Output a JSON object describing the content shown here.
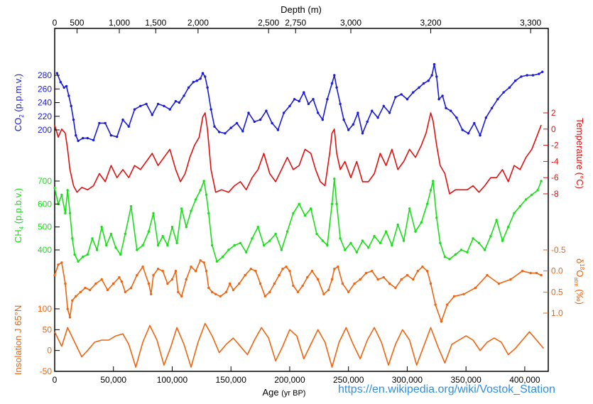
{
  "chart_data": {
    "type": "line",
    "source": "https://en.wikipedia.org/wiki/Vostok_Station",
    "x_bottom": {
      "label": "Age",
      "label_unit": "(yr BP)",
      "range": [
        0,
        420000
      ],
      "ticks": [
        "0",
        "50,000",
        "100,000",
        "150,000",
        "200,000",
        "250,000",
        "300,000",
        "350,000",
        "400,000"
      ],
      "tick_values": [
        0,
        50000,
        100000,
        150000,
        200000,
        250000,
        300000,
        350000,
        400000
      ]
    },
    "x_top": {
      "label": "Depth (m)",
      "ticks": [
        "0",
        "500",
        "1,000",
        "1,500",
        "2,000",
        "2,500",
        "2,750",
        "3,000",
        "3,200",
        "3,300"
      ],
      "tick_ages": [
        0,
        19000,
        55000,
        86000,
        122000,
        182000,
        205000,
        252000,
        320000,
        405000
      ]
    },
    "series": [
      {
        "name": "CO2",
        "axis_label": "CO",
        "axis_sub": "2",
        "axis_unit": "(p.p.m.v.)",
        "axis_side": "left",
        "color": "#1a1adb",
        "y_ticks": [
          "200",
          "220",
          "240",
          "260",
          "280"
        ],
        "y_tick_values": [
          200,
          220,
          240,
          260,
          280
        ],
        "x": [
          2000,
          5000,
          8000,
          10000,
          12000,
          14000,
          16000,
          18000,
          20000,
          24000,
          28000,
          33000,
          38000,
          43000,
          48000,
          53000,
          58000,
          63000,
          68000,
          73000,
          78000,
          83000,
          88000,
          93000,
          98000,
          103000,
          106000,
          110000,
          114000,
          118000,
          121000,
          124000,
          126000,
          128000,
          130000,
          133000,
          136000,
          140000,
          145000,
          150000,
          155000,
          160000,
          165000,
          170000,
          175000,
          180000,
          185000,
          190000,
          195000,
          200000,
          204000,
          208000,
          212000,
          216000,
          220000,
          224000,
          228000,
          232000,
          236000,
          238000,
          240000,
          243000,
          246000,
          250000,
          254000,
          258000,
          262000,
          266000,
          270000,
          275000,
          280000,
          285000,
          290000,
          295000,
          300000,
          305000,
          310000,
          314000,
          318000,
          321000,
          323000,
          325000,
          327000,
          330000,
          333000,
          337000,
          342000,
          347000,
          352000,
          357000,
          362000,
          367000,
          372000,
          377000,
          382000,
          387000,
          392000,
          397000,
          402000,
          407000,
          412000,
          415000
        ],
        "values": [
          283,
          270,
          262,
          264,
          250,
          235,
          215,
          192,
          184,
          188,
          188,
          185,
          210,
          210,
          192,
          190,
          215,
          205,
          230,
          235,
          238,
          222,
          238,
          235,
          230,
          242,
          240,
          250,
          262,
          270,
          272,
          275,
          283,
          278,
          262,
          230,
          205,
          197,
          195,
          203,
          210,
          198,
          225,
          212,
          215,
          228,
          210,
          200,
          225,
          235,
          245,
          242,
          255,
          238,
          245,
          225,
          215,
          245,
          268,
          280,
          262,
          238,
          215,
          200,
          208,
          225,
          195,
          212,
          228,
          218,
          235,
          225,
          248,
          252,
          245,
          255,
          262,
          268,
          272,
          280,
          296,
          278,
          245,
          250,
          232,
          228,
          218,
          200,
          195,
          210,
          192,
          218,
          232,
          245,
          255,
          262,
          272,
          278,
          280,
          280,
          282,
          285
        ]
      },
      {
        "name": "Temperature",
        "axis_label": "Temperature (°C)",
        "axis_side": "right",
        "color": "#e01010",
        "y_ticks": [
          "2",
          "0",
          "-2",
          "-4",
          "-6",
          "-8"
        ],
        "y_tick_values": [
          2,
          0,
          -2,
          -4,
          -6,
          -8
        ],
        "x": [
          0,
          3000,
          6000,
          9000,
          11000,
          13000,
          16000,
          19000,
          23000,
          28000,
          33000,
          38000,
          43000,
          48000,
          53000,
          58000,
          63000,
          68000,
          73000,
          78000,
          83000,
          88000,
          93000,
          98000,
          103000,
          107000,
          111000,
          115000,
          119000,
          123000,
          126000,
          128000,
          130000,
          133000,
          137000,
          142000,
          148000,
          153000,
          158000,
          163000,
          168000,
          173000,
          178000,
          183000,
          188000,
          193000,
          198000,
          203000,
          208000,
          213000,
          218000,
          222000,
          226000,
          230000,
          234000,
          236000,
          238000,
          240000,
          243000,
          247000,
          252000,
          257000,
          262000,
          267000,
          272000,
          277000,
          282000,
          287000,
          292000,
          297000,
          302000,
          307000,
          312000,
          316000,
          320000,
          322000,
          325000,
          328000,
          332000,
          336000,
          341000,
          346000,
          351000,
          356000,
          361000,
          366000,
          371000,
          376000,
          381000,
          386000,
          391000,
          396000,
          401000,
          406000,
          410000,
          414000
        ],
        "values": [
          0.5,
          -1.0,
          0.0,
          -0.5,
          -2.5,
          -5.0,
          -7.0,
          -7.8,
          -7.2,
          -7.5,
          -7.0,
          -5.5,
          -6.5,
          -4.5,
          -6.0,
          -5.0,
          -6.0,
          -4.5,
          -5.0,
          -4.0,
          -3.0,
          -4.5,
          -3.5,
          -2.5,
          -5.0,
          -6.5,
          -5.5,
          -3.5,
          -2.0,
          -1.0,
          1.5,
          2.0,
          0.0,
          -5.0,
          -7.8,
          -7.5,
          -7.8,
          -7.0,
          -6.5,
          -7.5,
          -6.0,
          -5.0,
          -3.0,
          -5.5,
          -6.5,
          -5.0,
          -3.5,
          -5.0,
          -4.5,
          -2.5,
          -3.0,
          -5.0,
          -6.5,
          -7.0,
          -3.0,
          -0.5,
          0.0,
          -3.0,
          -5.0,
          -4.0,
          -6.0,
          -4.0,
          -6.5,
          -6.5,
          -5.5,
          -3.0,
          -4.5,
          -2.5,
          -5.0,
          -4.0,
          -2.5,
          -3.5,
          -2.0,
          -0.5,
          2.0,
          1.0,
          -2.0,
          -4.5,
          -5.5,
          -8.0,
          -7.5,
          -7.5,
          -7.5,
          -7.0,
          -7.8,
          -7.0,
          -6.0,
          -6.0,
          -5.0,
          -6.5,
          -4.5,
          -5.0,
          -3.5,
          -2.5,
          -1.0,
          0.5
        ]
      },
      {
        "name": "CH4",
        "axis_label": "CH",
        "axis_sub": "4",
        "axis_unit": "(p.p.b.v.)",
        "axis_side": "left",
        "color": "#18e018",
        "y_ticks": [
          "400",
          "500",
          "600",
          "700"
        ],
        "y_tick_values": [
          400,
          500,
          600,
          700
        ],
        "x": [
          0,
          3000,
          6000,
          9000,
          11000,
          13000,
          15000,
          17000,
          20000,
          24000,
          28000,
          32000,
          36000,
          40000,
          44000,
          48000,
          52000,
          56000,
          60000,
          65000,
          70000,
          75000,
          80000,
          84000,
          88000,
          92000,
          96000,
          100000,
          104000,
          108000,
          112000,
          116000,
          120000,
          124000,
          127000,
          129000,
          131000,
          134000,
          138000,
          143000,
          148000,
          153000,
          158000,
          163000,
          168000,
          173000,
          178000,
          183000,
          188000,
          193000,
          198000,
          203000,
          208000,
          213000,
          218000,
          223000,
          228000,
          232000,
          236000,
          238000,
          240000,
          243000,
          247000,
          252000,
          257000,
          262000,
          267000,
          272000,
          277000,
          282000,
          287000,
          292000,
          297000,
          302000,
          307000,
          312000,
          317000,
          320000,
          322000,
          325000,
          328000,
          332000,
          336000,
          341000,
          346000,
          351000,
          356000,
          361000,
          366000,
          371000,
          376000,
          381000,
          386000,
          391000,
          396000,
          401000,
          406000,
          411000,
          414000
        ],
        "values": [
          670,
          600,
          640,
          560,
          660,
          560,
          450,
          380,
          350,
          370,
          380,
          450,
          400,
          500,
          420,
          470,
          410,
          380,
          470,
          590,
          400,
          420,
          480,
          560,
          420,
          460,
          420,
          500,
          430,
          580,
          500,
          570,
          620,
          660,
          700,
          640,
          560,
          420,
          350,
          370,
          400,
          420,
          430,
          390,
          450,
          500,
          420,
          440,
          470,
          400,
          480,
          560,
          600,
          550,
          580,
          470,
          440,
          420,
          600,
          710,
          600,
          450,
          400,
          430,
          390,
          440,
          410,
          460,
          430,
          480,
          420,
          510,
          440,
          580,
          480,
          520,
          600,
          660,
          700,
          540,
          430,
          370,
          360,
          380,
          400,
          390,
          450,
          430,
          400,
          460,
          530,
          440,
          500,
          560,
          590,
          620,
          640,
          660,
          700
        ]
      },
      {
        "name": "δ18Oatm",
        "axis_label": "δ",
        "axis_sup": "18",
        "axis_mid": "O",
        "axis_sub": "atm",
        "axis_unit": "(‰)",
        "axis_side": "right",
        "color": "#ee6410",
        "y_ticks": [
          "-0.5",
          "0.0",
          "0.5",
          "1.0"
        ],
        "y_tick_values": [
          -0.5,
          0.0,
          0.5,
          1.0
        ],
        "x": [
          0,
          3000,
          6000,
          9000,
          11000,
          13000,
          15000,
          18000,
          22000,
          26000,
          30000,
          35000,
          40000,
          45000,
          50000,
          55000,
          57000,
          60000,
          65000,
          70000,
          75000,
          80000,
          82000,
          84000,
          88000,
          92000,
          96000,
          100000,
          103000,
          105000,
          108000,
          112000,
          116000,
          120000,
          124000,
          127000,
          129000,
          131000,
          134000,
          137000,
          141000,
          146000,
          149000,
          152000,
          157000,
          162000,
          167000,
          171000,
          175000,
          179000,
          183000,
          187000,
          191000,
          194000,
          197000,
          200000,
          203000,
          207000,
          211000,
          215000,
          219000,
          224000,
          229000,
          233000,
          236000,
          238000,
          241000,
          245000,
          250000,
          255000,
          260000,
          265000,
          270000,
          275000,
          280000,
          285000,
          290000,
          295000,
          300000,
          305000,
          309000,
          313000,
          317000,
          320000,
          324000,
          329000,
          334000,
          340000,
          348000,
          358000,
          368000,
          378000,
          388000,
          398000,
          405000,
          410000,
          414000
        ],
        "values": [
          0.1,
          -0.15,
          -0.2,
          0.3,
          0.9,
          1.1,
          0.7,
          0.6,
          0.5,
          0.4,
          0.45,
          0.3,
          0.2,
          0.45,
          0.3,
          0.15,
          0.25,
          0.5,
          0.4,
          0.1,
          -0.1,
          0.3,
          0.55,
          0.1,
          -0.05,
          0.0,
          0.3,
          0.2,
          0.0,
          0.5,
          0.6,
          0.2,
          -0.1,
          0.0,
          -0.25,
          -0.2,
          0.0,
          0.4,
          0.5,
          0.55,
          0.6,
          0.5,
          0.3,
          0.45,
          0.3,
          0.1,
          -0.05,
          0.0,
          0.3,
          0.6,
          0.5,
          0.3,
          0.1,
          -0.05,
          -0.1,
          0.0,
          0.35,
          0.5,
          0.35,
          0.15,
          0.0,
          0.2,
          0.55,
          0.45,
          0.2,
          -0.05,
          -0.1,
          0.3,
          0.5,
          0.3,
          0.2,
          0.05,
          0.0,
          0.2,
          0.15,
          0.3,
          0.4,
          0.2,
          0.1,
          0.2,
          0.0,
          -0.1,
          0.0,
          0.3,
          0.8,
          1.2,
          0.8,
          0.6,
          0.55,
          0.4,
          0.1,
          0.3,
          0.2,
          0.0,
          0.05,
          0.05,
          0.1
        ]
      },
      {
        "name": "Insolation J 65°N",
        "axis_label": "Insolation J 65°N",
        "axis_side": "left",
        "color": "#ee6410",
        "y_ticks": [
          "-50",
          "0",
          "50",
          "100"
        ],
        "y_tick_values": [
          -50,
          0,
          50,
          100
        ],
        "x": [
          0,
          6000,
          11000,
          17000,
          23000,
          28000,
          34000,
          40000,
          46000,
          52000,
          58000,
          63000,
          69000,
          75000,
          81000,
          87000,
          93000,
          99000,
          104000,
          110000,
          116000,
          122000,
          128000,
          134000,
          140000,
          146000,
          152000,
          158000,
          164000,
          170000,
          176000,
          182000,
          188000,
          194000,
          200000,
          206000,
          212000,
          218000,
          224000,
          230000,
          236000,
          242000,
          248000,
          254000,
          260000,
          266000,
          272000,
          278000,
          284000,
          290000,
          296000,
          302000,
          308000,
          314000,
          320000,
          326000,
          332000,
          338000,
          344000,
          350000,
          356000,
          362000,
          368000,
          374000,
          380000,
          386000,
          392000,
          398000,
          404000,
          410000,
          416000
        ],
        "values": [
          45,
          10,
          55,
          20,
          -15,
          0,
          20,
          25,
          25,
          35,
          40,
          15,
          -40,
          20,
          60,
          25,
          -35,
          10,
          55,
          15,
          -40,
          20,
          65,
          35,
          -5,
          15,
          30,
          10,
          -10,
          25,
          55,
          30,
          -25,
          10,
          50,
          35,
          -20,
          15,
          50,
          20,
          -40,
          20,
          55,
          15,
          -20,
          25,
          55,
          20,
          -35,
          15,
          50,
          25,
          -35,
          10,
          55,
          10,
          -30,
          15,
          25,
          35,
          25,
          0,
          20,
          30,
          20,
          -10,
          5,
          25,
          45,
          25,
          5
        ]
      }
    ]
  }
}
